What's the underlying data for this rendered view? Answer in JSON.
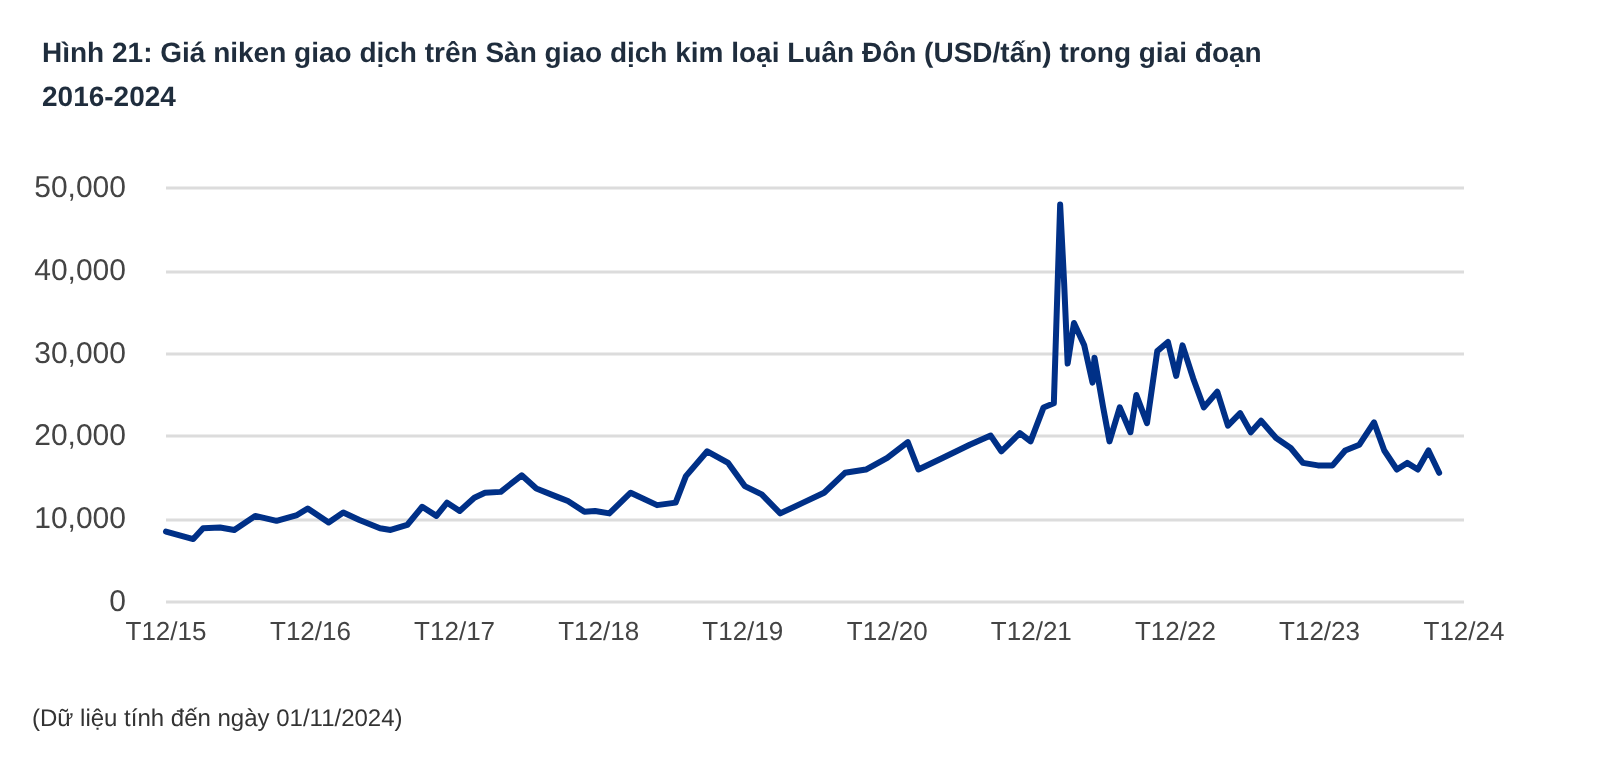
{
  "chart_data": {
    "type": "line",
    "title": "Hình 21: Giá niken giao dịch trên Sàn giao dịch kim loại Luân Đôn (USD/tấn) trong giai đoạn 2016-2024",
    "annotations": [
      "(Dữ liệu tính đến ngày 01/11/2024)"
    ],
    "x": [
      "2015-12-01",
      "2016-02-08",
      "2016-03-04",
      "2016-04-16",
      "2016-05-22",
      "2016-07-14",
      "2016-09-06",
      "2016-10-28",
      "2016-11-24",
      "2017-01-16",
      "2017-02-22",
      "2017-04-04",
      "2017-05-26",
      "2017-06-22",
      "2017-08-03",
      "2017-09-10",
      "2017-10-16",
      "2017-11-12",
      "2017-12-14",
      "2018-01-20",
      "2018-02-16",
      "2018-03-28",
      "2018-04-18",
      "2018-05-20",
      "2018-06-26",
      "2018-08-18",
      "2018-09-14",
      "2018-10-26",
      "2018-11-22",
      "2018-12-28",
      "2019-02-20",
      "2019-04-28",
      "2019-06-14",
      "2019-07-10",
      "2019-09-02",
      "2019-10-25",
      "2019-12-06",
      "2020-01-18",
      "2020-03-05",
      "2020-05-02",
      "2020-06-24",
      "2020-08-16",
      "2020-10-08",
      "2020-12-01",
      "2021-01-22",
      "2021-02-18",
      "2021-04-20",
      "2021-06-28",
      "2021-08-20",
      "2021-09-16",
      "2021-11-02",
      "2021-11-29",
      "2022-01-01",
      "2022-01-27",
      "2022-02-12",
      "2022-02-22",
      "2022-03-03",
      "2022-03-19",
      "2022-04-14",
      "2022-05-05",
      "2022-05-10",
      "2022-06-01",
      "2022-06-17",
      "2022-07-13",
      "2022-08-09",
      "2022-08-24",
      "2022-09-20",
      "2022-10-16",
      "2022-11-12",
      "2022-12-03",
      "2022-12-19",
      "2023-01-15",
      "2023-02-11",
      "2023-03-17",
      "2023-04-13",
      "2023-05-14",
      "2023-06-10",
      "2023-07-06",
      "2023-08-13",
      "2023-09-19",
      "2023-10-20",
      "2023-11-27",
      "2024-01-03",
      "2024-02-04",
      "2024-03-11",
      "2024-04-17",
      "2024-05-13",
      "2024-06-14",
      "2024-07-10",
      "2024-08-06",
      "2024-09-02",
      "2024-09-29"
    ],
    "series": [
      {
        "color": "#003087",
        "values": [
          8500,
          7600,
          8900,
          9000,
          8700,
          10400,
          9800,
          10500,
          11300,
          9600,
          10800,
          9900,
          8900,
          8700,
          9300,
          11500,
          10400,
          12000,
          11000,
          12600,
          13200,
          13300,
          14100,
          15300,
          13700,
          12700,
          12200,
          10900,
          11000,
          10700,
          13200,
          11700,
          12000,
          15200,
          18200,
          16800,
          14000,
          13000,
          10700,
          12000,
          13200,
          15600,
          16000,
          17400,
          19300,
          16000,
          17400,
          19000,
          20100,
          18200,
          20400,
          19400,
          23500,
          24000,
          48000,
          38600,
          28800,
          33700,
          31000,
          26500,
          29500,
          23500,
          19400,
          23500,
          20500,
          25000,
          21600,
          30300,
          31400,
          27300,
          31000,
          27000,
          23500,
          25400,
          21300,
          22800,
          20500,
          21900,
          19800,
          18600,
          16800,
          16500,
          16500,
          18300,
          19000,
          21700,
          18300,
          16000,
          16800,
          16000,
          18300,
          15600
        ]
      }
    ],
    "xlim": [
      "2015-12-01",
      "2024-12-01"
    ],
    "xticks": [
      {
        "value": "2015-12-01",
        "label": "T12/15"
      },
      {
        "value": "2016-12-01",
        "label": "T12/16"
      },
      {
        "value": "2017-12-01",
        "label": "T12/17"
      },
      {
        "value": "2018-12-01",
        "label": "T12/18"
      },
      {
        "value": "2019-12-01",
        "label": "T12/19"
      },
      {
        "value": "2020-12-01",
        "label": "T12/20"
      },
      {
        "value": "2021-12-01",
        "label": "T12/21"
      },
      {
        "value": "2022-12-01",
        "label": "T12/22"
      },
      {
        "value": "2023-12-01",
        "label": "T12/23"
      },
      {
        "value": "2024-12-01",
        "label": "T12/24"
      }
    ],
    "ylim": [
      0,
      50000
    ],
    "yticks": [
      0,
      {
        "value": 10000,
        "label": "10,000"
      },
      {
        "value": 20000,
        "label": "20,000"
      },
      {
        "value": 30000,
        "label": "30,000"
      },
      {
        "value": 40000,
        "label": "40,000"
      },
      {
        "value": 50000,
        "label": "50,000"
      }
    ],
    "grid": "y",
    "marker": "none",
    "line_style": "solid"
  }
}
